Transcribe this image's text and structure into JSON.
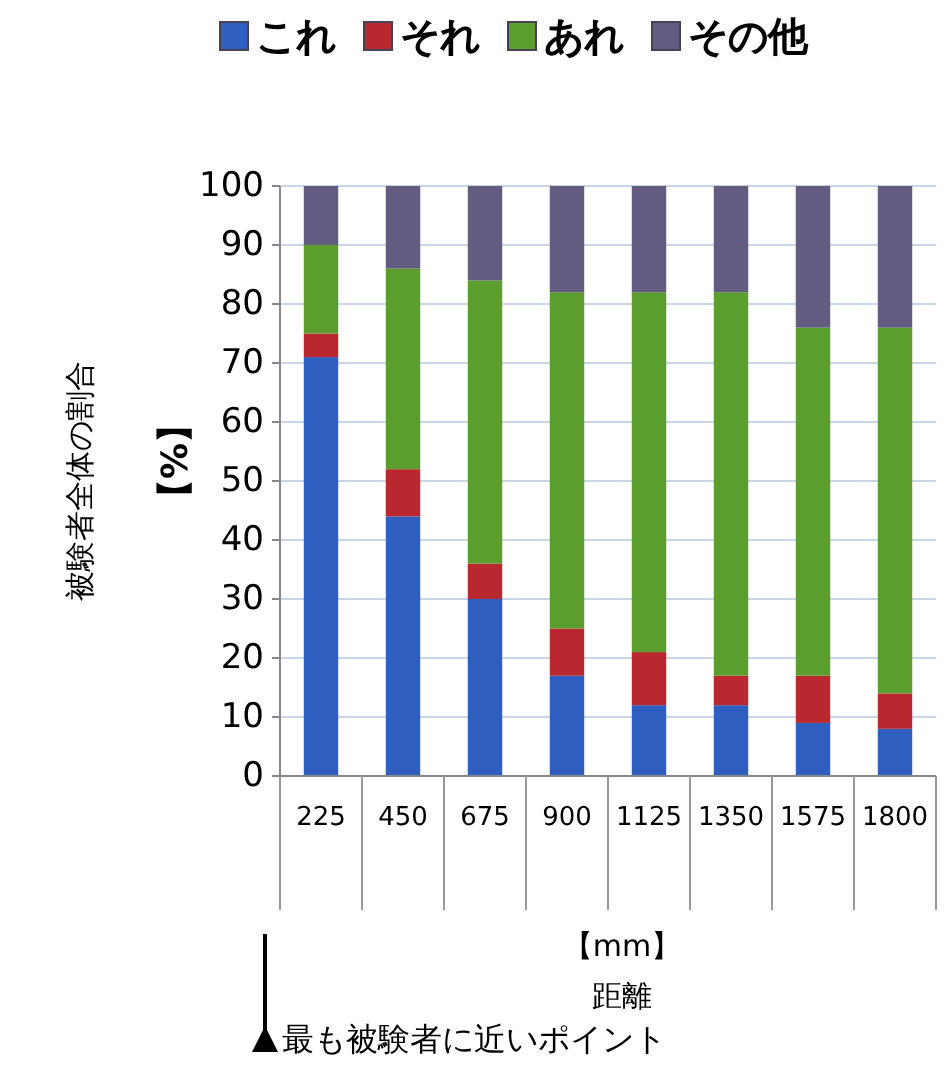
{
  "chart_data": {
    "type": "bar",
    "stacked": true,
    "categories": [
      "225",
      "450",
      "675",
      "900",
      "1125",
      "1350",
      "1575",
      "1800"
    ],
    "series": [
      {
        "name": "これ",
        "color": "#2e5fc0",
        "values": [
          71,
          44,
          30,
          17,
          12,
          12,
          9,
          8
        ]
      },
      {
        "name": "それ",
        "color": "#b8282e",
        "values": [
          4,
          8,
          6,
          8,
          9,
          5,
          8,
          6
        ]
      },
      {
        "name": "あれ",
        "color": "#5c9e2e",
        "values": [
          15,
          34,
          48,
          57,
          61,
          65,
          59,
          62
        ]
      },
      {
        "name": "その他",
        "color": "#615c80",
        "values": [
          10,
          14,
          16,
          18,
          18,
          18,
          24,
          24
        ]
      }
    ],
    "ylim": [
      0,
      100
    ],
    "yticks": [
      0,
      10,
      20,
      30,
      40,
      50,
      60,
      70,
      80,
      90,
      100
    ],
    "grid": "y",
    "legend": "top",
    "ylabel": "被験者全体の割合",
    "y2label": "【%】",
    "xlabel": "距離",
    "annotations": [
      "【mm】",
      "最も被験者に近いポイント"
    ]
  }
}
